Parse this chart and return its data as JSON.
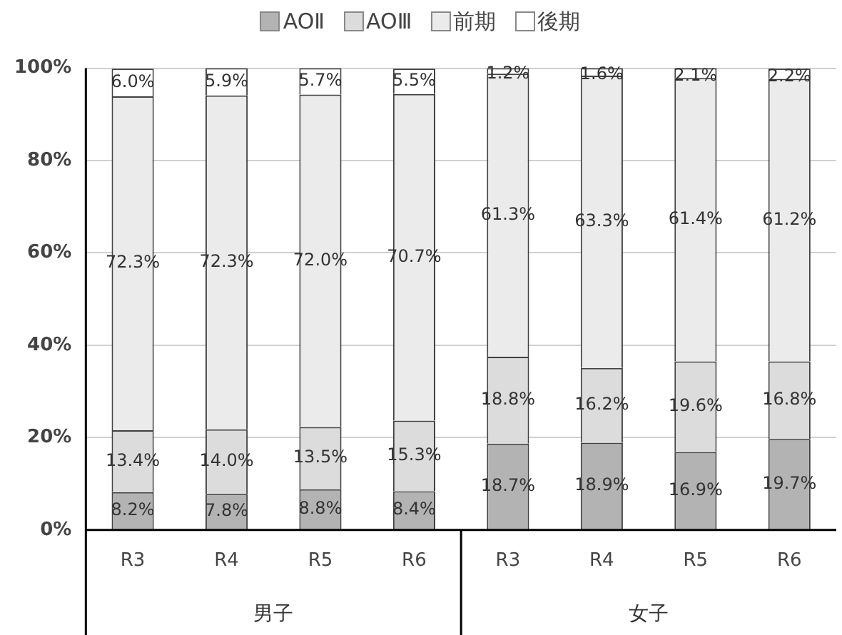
{
  "chart_data": {
    "type": "bar",
    "stacked": true,
    "categories": [
      "R3",
      "R4",
      "R5",
      "R6",
      "R3",
      "R4",
      "R5",
      "R6"
    ],
    "series": [
      {
        "name": "AOⅡ",
        "color": "#b3b3b3",
        "values": [
          8.2,
          7.8,
          8.8,
          8.4,
          18.7,
          18.9,
          16.9,
          19.7
        ],
        "value_labels": [
          "8.2%",
          "7.8%",
          "8.8%",
          "8.4%",
          "18.7%",
          "18.9%",
          "16.9%",
          "19.7%"
        ]
      },
      {
        "name": "AOⅢ",
        "color": "#dcdcdc",
        "values": [
          13.4,
          14.0,
          13.5,
          15.3,
          18.8,
          16.2,
          19.6,
          16.8
        ],
        "value_labels": [
          "13.4%",
          "14.0%",
          "13.5%",
          "15.3%",
          "18.8%",
          "16.2%",
          "19.6%",
          "16.8%"
        ]
      },
      {
        "name": "前期",
        "color": "#ebebeb",
        "values": [
          72.3,
          72.3,
          72.0,
          70.7,
          61.3,
          63.3,
          61.4,
          61.2
        ],
        "value_labels": [
          "72.3%",
          "72.3%",
          "72.0%",
          "70.7%",
          "61.3%",
          "63.3%",
          "61.4%",
          "61.2%"
        ]
      },
      {
        "name": "後期",
        "color": "#ffffff",
        "values": [
          6.0,
          5.9,
          5.7,
          5.5,
          1.2,
          1.6,
          2.1,
          2.2
        ],
        "value_labels": [
          "6.0%",
          "5.9%",
          "5.7%",
          "5.5%",
          "1.2%",
          "1.6%",
          "2.1%",
          "2.2%"
        ]
      }
    ],
    "ylim": [
      0,
      100
    ],
    "yticks": [
      {
        "value": 0,
        "label": "0%"
      },
      {
        "value": 20,
        "label": "20%"
      },
      {
        "value": 40,
        "label": "40%"
      },
      {
        "value": 60,
        "label": "60%"
      },
      {
        "value": 80,
        "label": "80%"
      },
      {
        "value": 100,
        "label": "100%"
      }
    ],
    "grid": "y",
    "legend": "top",
    "annotations": [
      "男子",
      "女子"
    ]
  }
}
